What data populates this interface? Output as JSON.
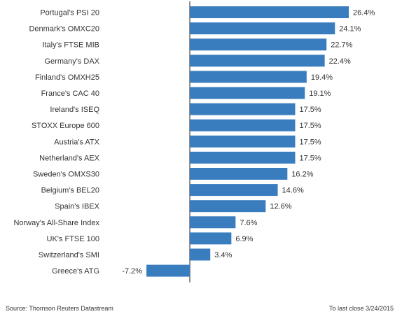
{
  "chart_data": {
    "type": "bar",
    "orientation": "horizontal",
    "categories": [
      "Portugal's PSI 20",
      "Denmark's OMXC20",
      "Italy's FTSE MIB",
      "Germany's DAX",
      "Finland's OMXH25",
      "France's CAC 40",
      "Ireland's ISEQ",
      "STOXX Europe 600",
      "Austria's ATX",
      "Netherland's AEX",
      "Sweden's OMXS30",
      "Belgium's BEL20",
      "Spain's IBEX",
      "Norway's All-Share Index",
      "UK's FTSE 100",
      "Switzerland's SMI",
      "Greece's ATG"
    ],
    "values": [
      26.4,
      24.1,
      22.7,
      22.4,
      19.4,
      19.1,
      17.5,
      17.5,
      17.5,
      17.5,
      16.2,
      14.6,
      12.6,
      7.6,
      6.9,
      3.4,
      -7.2
    ],
    "value_labels": [
      "26.4%",
      "24.1%",
      "22.7%",
      "22.4%",
      "19.4%",
      "19.1%",
      "17.5%",
      "17.5%",
      "17.5%",
      "17.5%",
      "16.2%",
      "14.6%",
      "12.6%",
      "7.6%",
      "6.9%",
      "3.4%",
      "-7.2%"
    ],
    "unit": "%",
    "bar_color": "#3a7dbf",
    "grid": false,
    "legend": "none"
  },
  "footer": {
    "source": "Source: Thomson Reuters Datastream",
    "as_of": "To last close 3/24/2015"
  }
}
